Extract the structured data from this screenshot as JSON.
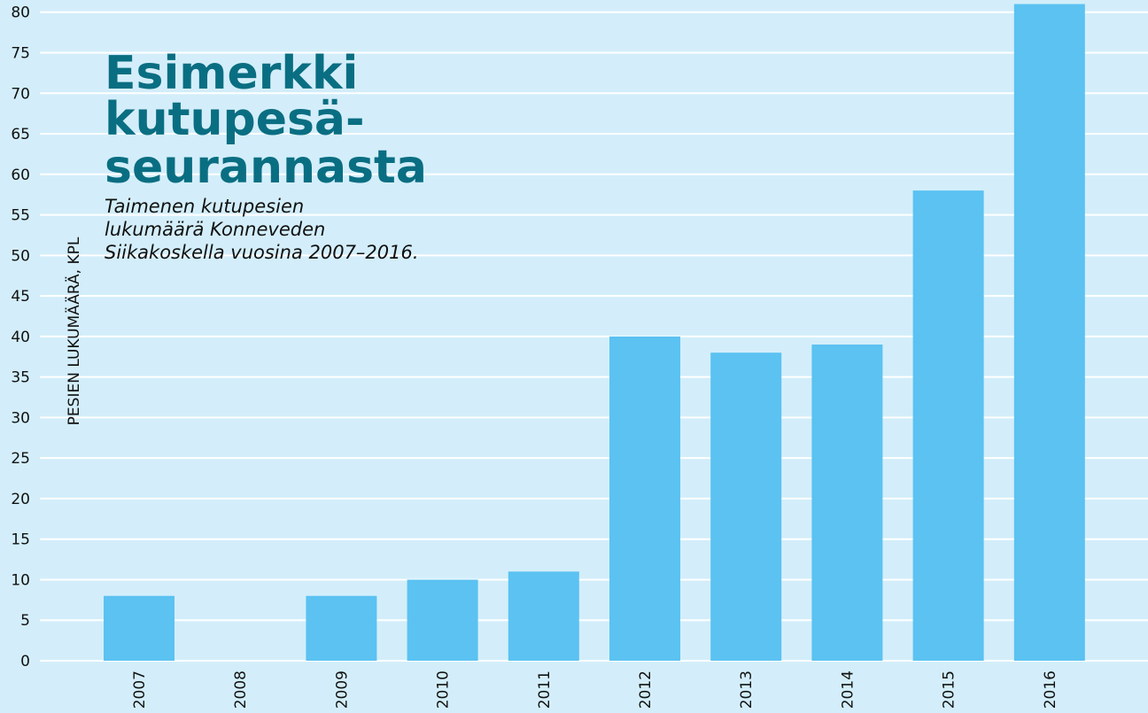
{
  "chart_data": {
    "type": "bar",
    "title": [
      "Esimerkki",
      "kutupesä-",
      "seurannasta"
    ],
    "subtitle": [
      "Taimenen kutupesien",
      "lukumäärä Konneveden",
      "Siikakoskella vuosina 2007–2016."
    ],
    "y_label": "PESIEN LUKUMÄÄRÄ, KPL",
    "categories": [
      "2007",
      "2008",
      "2009",
      "2010",
      "2011",
      "2012",
      "2013",
      "2014",
      "2015",
      "2016"
    ],
    "values": [
      8,
      0,
      8,
      10,
      11,
      40,
      38,
      39,
      58,
      81
    ],
    "color": "#5bc2f1",
    "ylim": [
      0,
      81.5
    ],
    "yticks": [
      0,
      5,
      10,
      15,
      20,
      25,
      30,
      35,
      40,
      45,
      50,
      55,
      60,
      65,
      70,
      75,
      80
    ],
    "grid": true
  }
}
